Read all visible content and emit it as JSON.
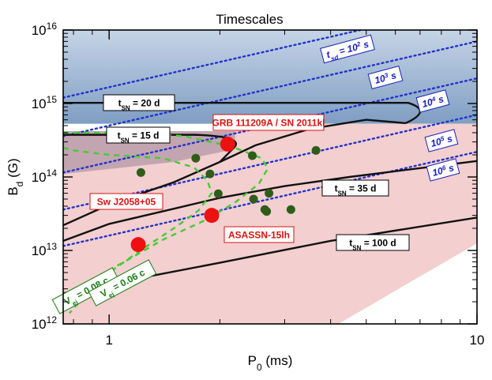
{
  "chart_data": {
    "type": "scatter",
    "title": "Timescales",
    "xlabel": "P",
    "xlabel_sub": "0",
    "xlabel_unit": " (ms)",
    "ylabel": "B",
    "ylabel_sub": "d",
    "ylabel_unit": " (G)",
    "xscale": "log",
    "yscale": "log",
    "xlim": [
      0.75,
      10
    ],
    "ylim": [
      1000000000000.0,
      1e+16
    ],
    "xticks": [
      {
        "value": 1,
        "label": "1"
      },
      {
        "value": 10,
        "label": "10"
      }
    ],
    "yticks": [
      {
        "value": 1000000000000.0,
        "base": "10",
        "exp": "12"
      },
      {
        "value": 10000000000000.0,
        "base": "10",
        "exp": "13"
      },
      {
        "value": 100000000000000.0,
        "base": "10",
        "exp": "14"
      },
      {
        "value": 1000000000000000.0,
        "base": "10",
        "exp": "15"
      },
      {
        "value": 1e+16,
        "base": "10",
        "exp": "16"
      }
    ],
    "colors": {
      "blue_region": "#8fb0d0",
      "pink_region": "#f3cfcf",
      "mauve_region": "#b59aa8",
      "dark_curve": "#111111",
      "blue_dotted": "#2233cc",
      "green_dashed": "#44cc33",
      "dark_points": "#2e5d1a",
      "red_points": "#ee1111"
    },
    "dark_points": [
      {
        "x": 1.22,
        "y": 115000000000000.0
      },
      {
        "x": 1.72,
        "y": 180000000000000.0
      },
      {
        "x": 1.88,
        "y": 110000000000000.0
      },
      {
        "x": 1.98,
        "y": 59000000000000.0
      },
      {
        "x": 2.45,
        "y": 195000000000000.0
      },
      {
        "x": 2.47,
        "y": 50000000000000.0
      },
      {
        "x": 2.65,
        "y": 36000000000000.0
      },
      {
        "x": 2.68,
        "y": 34000000000000.0
      },
      {
        "x": 2.72,
        "y": 60000000000000.0
      },
      {
        "x": 3.12,
        "y": 36000000000000.0
      },
      {
        "x": 3.65,
        "y": 230000000000000.0
      }
    ],
    "red_points": [
      {
        "name": "GRB 111209A /  SN 2011kl",
        "x": 2.1,
        "y": 280000000000000.0
      },
      {
        "name": "Sw J2058+05",
        "x": 1.9,
        "y": 30000000000000.0
      },
      {
        "name": "ASASSN-15lh",
        "x": 1.2,
        "y": 12000000000000.0
      }
    ],
    "tsn_labels": [
      {
        "var": "t",
        "sub": "SN",
        "value": " = 20 d"
      },
      {
        "var": "t",
        "sub": "SN",
        "value": " = 15 d"
      },
      {
        "var": "t",
        "sub": "SN",
        "value": " = 35 d"
      },
      {
        "var": "t",
        "sub": "SN",
        "value": " = 100 d"
      }
    ],
    "tsd_labels": [
      {
        "pre": "t",
        "sub": "sd",
        "mid": " = 10",
        "sup": "2",
        "post": " s"
      },
      {
        "pre": "10",
        "sub": "",
        "mid": "",
        "sup": "3",
        "post": " s"
      },
      {
        "pre": "10",
        "sub": "",
        "mid": "",
        "sup": "4",
        "post": " s"
      },
      {
        "pre": "10",
        "sub": "",
        "mid": "",
        "sup": "5",
        "post": " s"
      },
      {
        "pre": "10",
        "sub": "",
        "mid": "",
        "sup": "6",
        "post": " s"
      }
    ],
    "vej_labels": [
      {
        "var": "V",
        "sub": "ej",
        "value": " = 0.08 c"
      },
      {
        "var": "V",
        "sub": "ej",
        "value": " = 0.06 c"
      }
    ]
  }
}
